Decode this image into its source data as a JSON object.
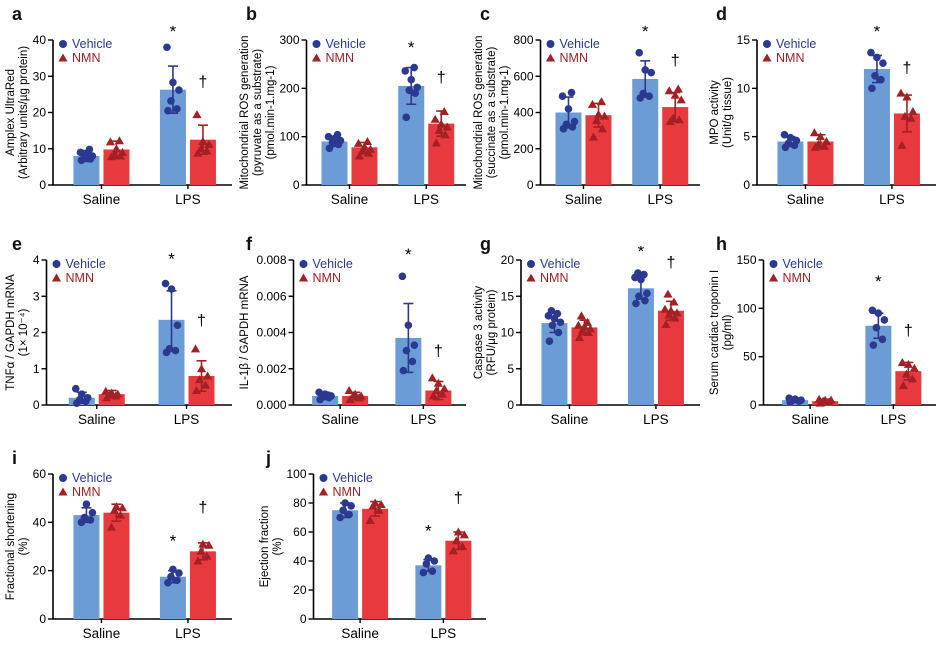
{
  "figure": {
    "background": "#ffffff",
    "colors": {
      "bar_blue": "#6C9CD6",
      "bar_red": "#E8393F",
      "point_blue": "#2B3990",
      "point_red": "#A32024",
      "axis": "#000000",
      "sig": "#000000"
    },
    "legend_labels": [
      "Vehicle",
      "NMN"
    ],
    "categories": [
      "Saline",
      "LPS"
    ]
  },
  "chart_data": [
    {
      "letter": "a",
      "type": "bar",
      "ylabel_lines": [
        "Amplex UltraRed",
        "(Arbitrary units/µg protein)"
      ],
      "ylim": [
        0,
        40
      ],
      "yticks": [
        0,
        10,
        20,
        30,
        40
      ],
      "categories": [
        "Saline",
        "LPS"
      ],
      "series": [
        {
          "name": "Vehicle",
          "values": [
            8,
            26.3
          ],
          "err": [
            1.5,
            6.5
          ],
          "points": [
            [
              6.8,
              7.2,
              7.6,
              8,
              8.4,
              9,
              9.8
            ],
            [
              20.5,
              21,
              23.2,
              26.2,
              28.3,
              38
            ]
          ]
        },
        {
          "name": "NMN",
          "values": [
            9.8,
            12.5
          ],
          "err": [
            2.3,
            4
          ],
          "points": [
            [
              7.8,
              8,
              8.4,
              9,
              10,
              11.9,
              12.2
            ],
            [
              8.8,
              9.4,
              10,
              11.2,
              12,
              19.4
            ]
          ]
        }
      ],
      "sig": [
        {
          "symbol": "*",
          "group": 1,
          "series": 0,
          "y": 42.5
        },
        {
          "symbol": "†",
          "group": 1,
          "series": 1,
          "y": 27
        }
      ]
    },
    {
      "letter": "b",
      "type": "bar",
      "ylabel_lines": [
        "Mitochondrial ROS generation",
        "(pyruvate as a substrate)",
        "(pmol.min-1.mg-1)"
      ],
      "ylim": [
        0,
        300
      ],
      "yticks": [
        0,
        100,
        200,
        300
      ],
      "categories": [
        "Saline",
        "LPS"
      ],
      "series": [
        {
          "name": "Vehicle",
          "values": [
            90,
            205
          ],
          "err": [
            10,
            38
          ],
          "points": [
            [
              76,
              84,
              88,
              92,
              96,
              100,
              104
            ],
            [
              140,
              190,
              196,
              202,
              218,
              236,
              243
            ]
          ]
        },
        {
          "name": "NMN",
          "values": [
            78,
            127
          ],
          "err": [
            10,
            26
          ],
          "points": [
            [
              60,
              66,
              70,
              74,
              79,
              86,
              90
            ],
            [
              87,
              104,
              113,
              120,
              126,
              136,
              152
            ]
          ]
        }
      ],
      "sig": [
        {
          "symbol": "*",
          "group": 1,
          "series": 0,
          "y": 273
        },
        {
          "symbol": "†",
          "group": 1,
          "series": 1,
          "y": 212
        }
      ]
    },
    {
      "letter": "c",
      "type": "bar",
      "ylabel_lines": [
        "Mitochondrial ROS generation",
        "(succinate as a substrate)",
        "(pmol.min-1.mg-1)"
      ],
      "ylim": [
        0,
        800
      ],
      "yticks": [
        0,
        200,
        400,
        600,
        800
      ],
      "categories": [
        "Saline",
        "LPS"
      ],
      "series": [
        {
          "name": "Vehicle",
          "values": [
            400,
            585
          ],
          "err": [
            85,
            100
          ],
          "points": [
            [
              310,
              320,
              335,
              350,
              420,
              490,
              510
            ],
            [
              480,
              490,
              505,
              620,
              635,
              730
            ]
          ]
        },
        {
          "name": "NMN",
          "values": [
            385,
            430
          ],
          "err": [
            65,
            80
          ],
          "points": [
            [
              265,
              310,
              355,
              380,
              390,
              445,
              460
            ],
            [
              350,
              360,
              370,
              470,
              495,
              520,
              530
            ]
          ]
        }
      ],
      "sig": [
        {
          "symbol": "*",
          "group": 1,
          "series": 0,
          "y": 820
        },
        {
          "symbol": "†",
          "group": 1,
          "series": 1,
          "y": 660
        }
      ]
    },
    {
      "letter": "d",
      "type": "bar",
      "ylabel_lines": [
        "MPO activity",
        "(Unit/g tissue)"
      ],
      "ylim": [
        0,
        15
      ],
      "yticks": [
        0,
        5,
        10,
        15
      ],
      "categories": [
        "Saline",
        "LPS"
      ],
      "series": [
        {
          "name": "Vehicle",
          "values": [
            4.5,
            12
          ],
          "err": [
            0.5,
            1.4
          ],
          "points": [
            [
              3.9,
              4.1,
              4.3,
              4.6,
              4.9,
              5.2
            ],
            [
              10,
              10.9,
              11.3,
              12.6,
              13.2,
              13.7
            ]
          ]
        },
        {
          "name": "NMN",
          "values": [
            4.5,
            7.4
          ],
          "err": [
            0.7,
            1.9
          ],
          "points": [
            [
              3.9,
              4.0,
              4.2,
              4.5,
              5.0,
              5.4
            ],
            [
              4.1,
              6.9,
              7.1,
              7.6,
              9.1,
              9.5
            ]
          ]
        }
      ],
      "sig": [
        {
          "symbol": "*",
          "group": 1,
          "series": 0,
          "y": 15.6
        },
        {
          "symbol": "†",
          "group": 1,
          "series": 1,
          "y": 11.6
        }
      ]
    },
    {
      "letter": "e",
      "type": "bar",
      "ylabel_lines": [
        "TNFα / GAPDH mRNA",
        "(1× 10⁻⁴)"
      ],
      "ylim": [
        0,
        4
      ],
      "yticks": [
        0,
        1,
        2,
        3,
        4
      ],
      "categories": [
        "Saline",
        "LPS"
      ],
      "series": [
        {
          "name": "Vehicle",
          "values": [
            0.2,
            2.35
          ],
          "err": [
            0.15,
            0.8
          ],
          "points": [
            [
              0.05,
              0.1,
              0.15,
              0.2,
              0.3,
              0.45
            ],
            [
              1.45,
              1.5,
              1.55,
              2.2,
              3.2,
              3.35
            ]
          ]
        },
        {
          "name": "NMN",
          "values": [
            0.3,
            0.8
          ],
          "err": [
            0.1,
            0.42
          ],
          "points": [
            [
              0.2,
              0.25,
              0.28,
              0.3,
              0.33,
              0.38
            ],
            [
              0.4,
              0.55,
              0.7,
              0.8,
              1.0,
              1.55
            ]
          ]
        }
      ],
      "sig": [
        {
          "symbol": "*",
          "group": 1,
          "series": 0,
          "y": 3.87
        },
        {
          "symbol": "†",
          "group": 1,
          "series": 1,
          "y": 2.2
        }
      ]
    },
    {
      "letter": "f",
      "type": "bar",
      "ylabel_lines": [
        "IL-1β / GAPDH mRNA"
      ],
      "ylim": [
        0,
        0.008
      ],
      "yticks": [
        0,
        0.002,
        0.004,
        0.006,
        0.008
      ],
      "ytick_labels": [
        "0.000",
        "0.002",
        "0.004",
        "0.006",
        "0.008"
      ],
      "categories": [
        "Saline",
        "LPS"
      ],
      "series": [
        {
          "name": "Vehicle",
          "values": [
            0.0005,
            0.0037
          ],
          "err": [
            0.0002,
            0.0019
          ],
          "points": [
            [
              0.0003,
              0.0004,
              0.0005,
              0.0005,
              0.0006,
              0.0007
            ],
            [
              0.0019,
              0.0024,
              0.003,
              0.0033,
              0.0044,
              0.0071
            ]
          ]
        },
        {
          "name": "NMN",
          "values": [
            0.0005,
            0.0008
          ],
          "err": [
            0.0002,
            0.0005
          ],
          "points": [
            [
              0.0003,
              0.0004,
              0.0005,
              0.0005,
              0.0006,
              0.0008
            ],
            [
              0.0005,
              0.0006,
              0.0008,
              0.0009,
              0.0012,
              0.0015
            ]
          ]
        }
      ],
      "sig": [
        {
          "symbol": "*",
          "group": 1,
          "series": 0,
          "y": 0.008
        },
        {
          "symbol": "†",
          "group": 1,
          "series": 1,
          "y": 0.0027
        }
      ]
    },
    {
      "letter": "g",
      "type": "bar",
      "ylabel_lines": [
        "Caspase 3 activity",
        "(RFU/μg protein)"
      ],
      "ylim": [
        0,
        20
      ],
      "yticks": [
        0,
        5,
        10,
        15,
        20
      ],
      "categories": [
        "Saline",
        "LPS"
      ],
      "series": [
        {
          "name": "Vehicle",
          "values": [
            11.3,
            16.1
          ],
          "err": [
            1.3,
            1.5
          ],
          "points": [
            [
              8.8,
              10,
              11,
              11.4,
              11.9,
              12.3,
              12.6,
              13
            ],
            [
              14,
              14.4,
              15,
              15.4,
              17.3,
              17.6,
              18,
              18.2
            ]
          ]
        },
        {
          "name": "NMN",
          "values": [
            10.7,
            13
          ],
          "err": [
            1.0,
            1.3
          ],
          "points": [
            [
              9.3,
              10,
              10.3,
              10.5,
              10.8,
              11,
              11.4,
              12.3
            ],
            [
              11.1,
              12,
              12.4,
              12.7,
              13,
              13.2,
              14.2,
              15.3
            ]
          ]
        }
      ],
      "sig": [
        {
          "symbol": "*",
          "group": 1,
          "series": 0,
          "y": 21
        },
        {
          "symbol": "†",
          "group": 1,
          "series": 1,
          "y": 19
        }
      ]
    },
    {
      "letter": "h",
      "type": "bar",
      "ylabel_lines": [
        "Serum cardiac troponin I",
        "(pg/ml)"
      ],
      "ylim": [
        0,
        150
      ],
      "yticks": [
        0,
        50,
        100,
        150
      ],
      "categories": [
        "Saline",
        "LPS"
      ],
      "series": [
        {
          "name": "Vehicle",
          "values": [
            5,
            82
          ],
          "err": [
            2,
            13
          ],
          "points": [
            [
              3,
              4,
              5,
              5,
              6,
              7
            ],
            [
              62,
              68,
              80,
              88,
              95,
              98
            ]
          ]
        },
        {
          "name": "NMN",
          "values": [
            4,
            35
          ],
          "err": [
            2,
            9
          ],
          "points": [
            [
              2,
              3,
              4,
              5,
              5,
              6
            ],
            [
              20,
              27,
              32,
              38,
              42,
              44
            ]
          ]
        }
      ],
      "sig": [
        {
          "symbol": "*",
          "group": 1,
          "series": 0,
          "y": 122
        },
        {
          "symbol": "†",
          "group": 1,
          "series": 1,
          "y": 72
        }
      ]
    },
    {
      "letter": "i",
      "type": "bar",
      "ylabel_lines": [
        "Fractional shortening",
        "(%)"
      ],
      "ylim": [
        0,
        60
      ],
      "yticks": [
        0,
        20,
        40,
        60
      ],
      "categories": [
        "Saline",
        "LPS"
      ],
      "series": [
        {
          "name": "Vehicle",
          "values": [
            43,
            17.5
          ],
          "err": [
            3,
            2.5
          ],
          "points": [
            [
              40,
              41,
              42,
              44,
              47.5
            ],
            [
              15,
              16,
              17.5,
              19,
              20.5
            ]
          ]
        },
        {
          "name": "NMN",
          "values": [
            44,
            28
          ],
          "err": [
            3.5,
            3.5
          ],
          "points": [
            [
              38,
              43,
              45,
              46,
              46.5
            ],
            [
              24,
              26,
              28,
              30.5,
              31
            ]
          ]
        }
      ],
      "sig": [
        {
          "symbol": "*",
          "group": 1,
          "series": 0,
          "y": 30
        },
        {
          "symbol": "†",
          "group": 1,
          "series": 1,
          "y": 44
        }
      ]
    },
    {
      "letter": "j",
      "type": "bar",
      "ylabel_lines": [
        "Ejection fraction",
        "(%)"
      ],
      "ylim": [
        0,
        100
      ],
      "yticks": [
        0,
        20,
        40,
        60,
        80,
        100
      ],
      "categories": [
        "Saline",
        "LPS"
      ],
      "series": [
        {
          "name": "Vehicle",
          "values": [
            75,
            37
          ],
          "err": [
            5,
            4
          ],
          "points": [
            [
              70,
              72,
              75,
              78,
              80
            ],
            [
              32,
              33,
              38,
              40,
              42
            ]
          ]
        },
        {
          "name": "NMN",
          "values": [
            76,
            54
          ],
          "err": [
            5,
            6
          ],
          "points": [
            [
              68,
              75,
              78,
              79,
              80
            ],
            [
              47,
              50,
              54,
              58,
              60
            ]
          ]
        }
      ],
      "sig": [
        {
          "symbol": "*",
          "group": 1,
          "series": 0,
          "y": 57
        },
        {
          "symbol": "†",
          "group": 1,
          "series": 1,
          "y": 80
        }
      ]
    }
  ]
}
